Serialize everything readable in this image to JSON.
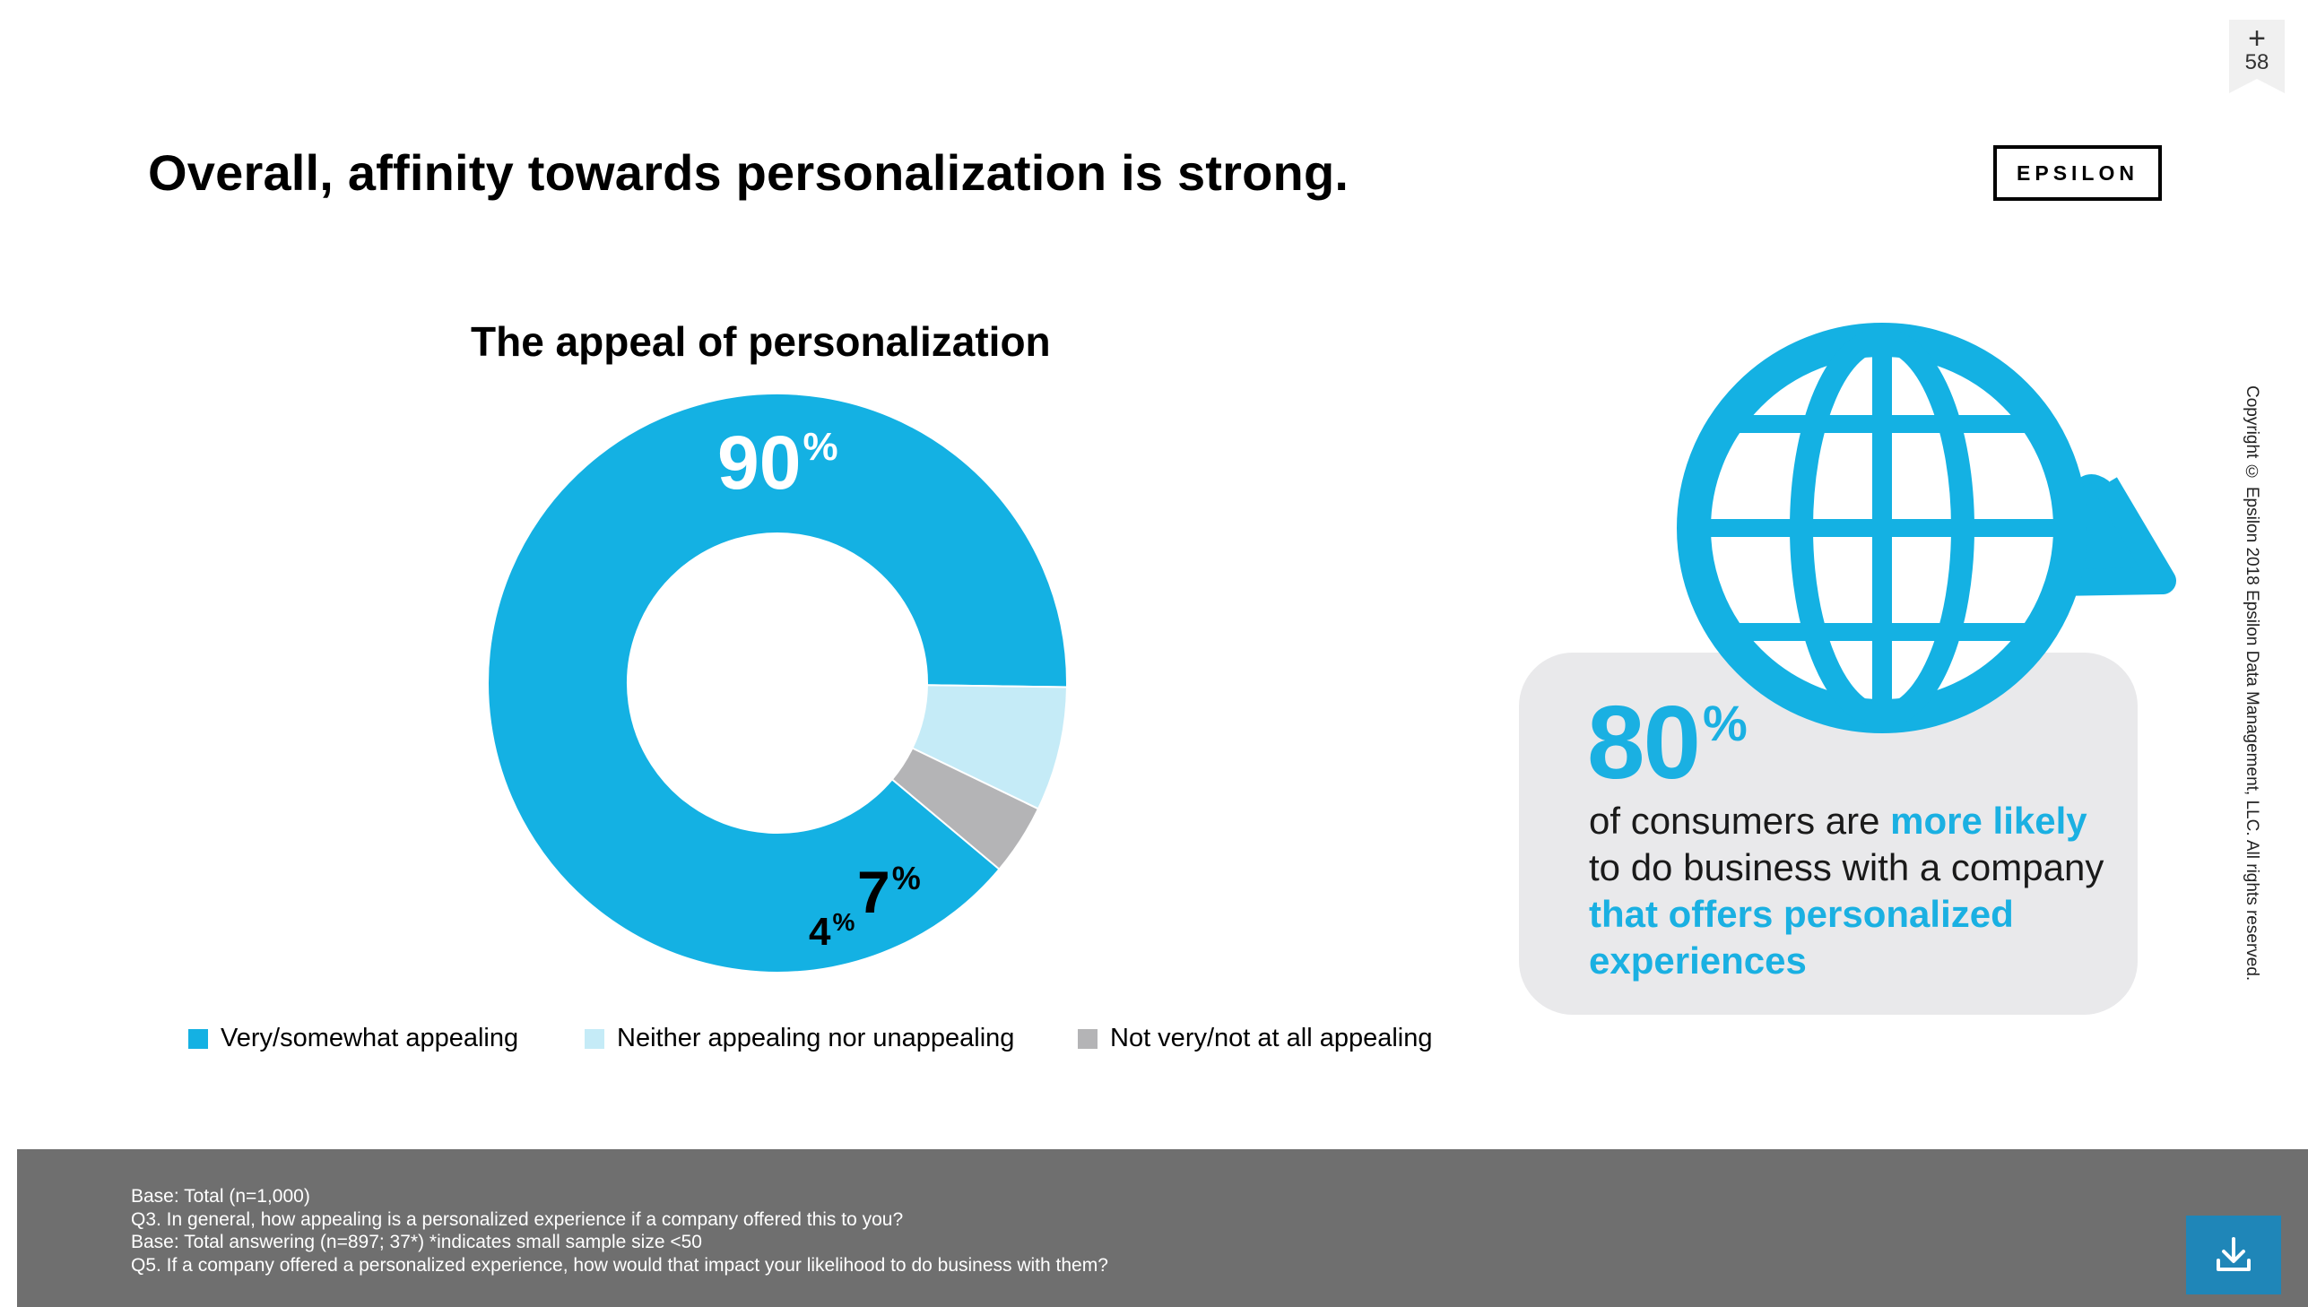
{
  "slide": {
    "title": "Overall, affinity towards personalization is strong.",
    "logo": "EPSILON",
    "page_number": "58",
    "copyright": "Copyright © Epsilon 2018 Epsilon Data Management, LLC. All rights reserved."
  },
  "chart_data": {
    "type": "pie",
    "title": "The appeal of personalization",
    "categories": [
      "Very/somewhat appealing",
      "Neither appealing nor unappealing",
      "Not very/not at all appealing"
    ],
    "values": [
      90,
      7,
      4
    ],
    "value_labels": [
      "90",
      "7",
      "4"
    ],
    "unit": "%",
    "colors": [
      "#14b1e3",
      "#c5ebf7",
      "#b4b4b6"
    ],
    "legend_placement": "bottom"
  },
  "stat": {
    "value": "80",
    "unit": "%",
    "text_parts": [
      {
        "text": "of consumers are ",
        "highlight": false
      },
      {
        "text": "more likely",
        "highlight": true
      },
      {
        "text": " to do business with a company ",
        "highlight": false
      },
      {
        "text": "that offers personalized experiences",
        "highlight": true
      }
    ],
    "accent_color": "#1ab0e2",
    "icon": "globe-icon"
  },
  "footer": {
    "notes": [
      "Base: Total (n=1,000)",
      "Q3. In general, how appealing is a personalized experience if a company offered this to you?",
      "Base: Total answering  (n=897; 37*) *indicates small sample size <50",
      "Q5. If a company offered a personalized experience, how would that impact your likelihood to do business with them?"
    ],
    "download_icon": "download-icon"
  }
}
